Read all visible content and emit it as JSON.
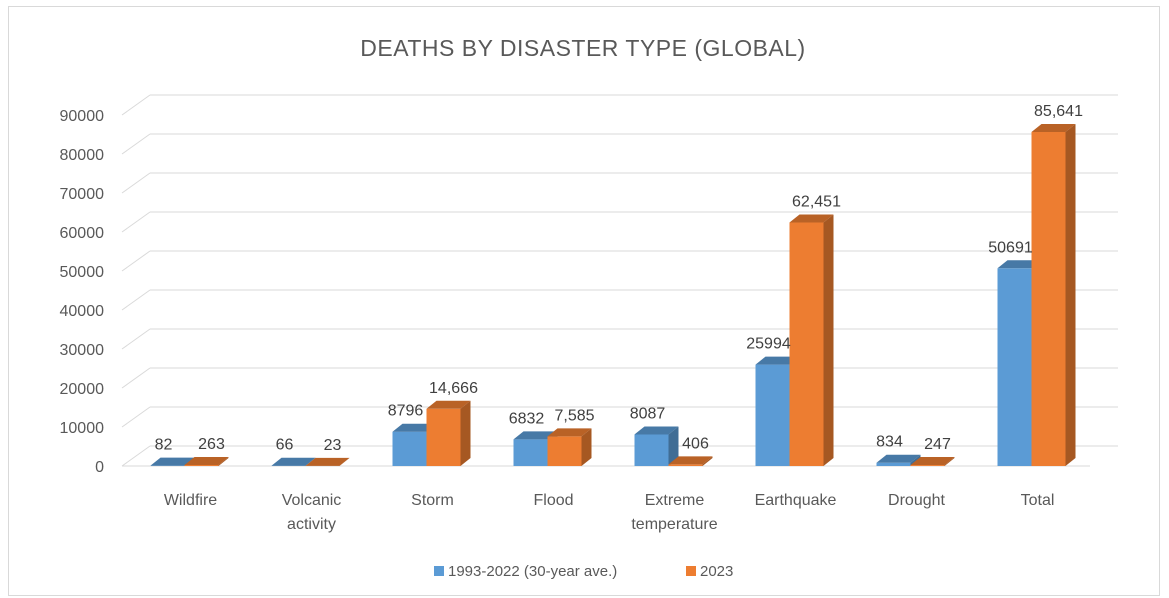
{
  "chart_data": {
    "type": "bar",
    "title": "DEATHS BY DISASTER TYPE (GLOBAL)",
    "categories": [
      "Wildfire",
      "Volcanic activity",
      "Storm",
      "Flood",
      "Extreme temperature",
      "Earthquake",
      "Drought",
      "Total"
    ],
    "category_lines": [
      [
        "Wildfire"
      ],
      [
        "Volcanic",
        "activity"
      ],
      [
        "Storm"
      ],
      [
        "Flood"
      ],
      [
        "Extreme",
        "temperature"
      ],
      [
        "Earthquake"
      ],
      [
        "Drought"
      ],
      [
        "Total"
      ]
    ],
    "series": [
      {
        "name": "1993-2022 (30-year ave.)",
        "color": "#5b9bd5",
        "values": [
          82,
          66,
          8796,
          6832,
          8087,
          25994,
          834,
          50691
        ],
        "labels": [
          "82",
          "66",
          "8796",
          "6832",
          "8087",
          "25994",
          "834",
          "50691"
        ]
      },
      {
        "name": "2023",
        "color": "#ed7d31",
        "values": [
          263,
          23,
          14666,
          7585,
          406,
          62451,
          247,
          85641
        ],
        "labels": [
          "263",
          "23",
          "14,666",
          "7,585",
          "406",
          "62,451",
          "247",
          "85,641"
        ]
      }
    ],
    "ylim": [
      0,
      90000
    ],
    "yticks": [
      "0",
      "10000",
      "20000",
      "30000",
      "40000",
      "50000",
      "60000",
      "70000",
      "80000",
      "90000"
    ],
    "grid": true,
    "legend_position": "bottom",
    "three_d": true
  }
}
